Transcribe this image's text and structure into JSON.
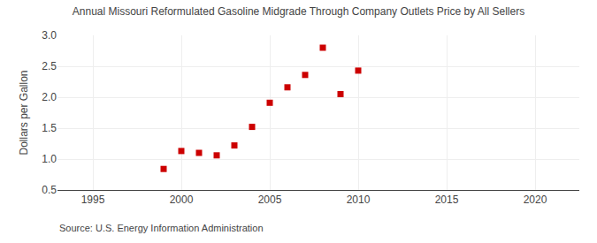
{
  "chart_data": {
    "type": "scatter",
    "title": "Annual Missouri Reformulated Gasoline Midgrade Through Company Outlets Price by All Sellers",
    "ylabel": "Dollars per Gallon",
    "annotations": [
      "Source: U.S. Energy Information Administration"
    ],
    "x": [
      1999,
      2000,
      2001,
      2002,
      2003,
      2004,
      2005,
      2006,
      2007,
      2008,
      2009,
      2010
    ],
    "values": [
      0.84,
      1.13,
      1.1,
      1.06,
      1.22,
      1.52,
      1.91,
      2.16,
      2.36,
      2.8,
      2.05,
      2.43
    ],
    "color": "#cc0000",
    "marker": "square",
    "xlim": [
      1993,
      2022.5
    ],
    "ylim": [
      0.5,
      3.0
    ],
    "xticks": [
      1995,
      2000,
      2005,
      2010,
      2015,
      2020
    ],
    "yticks": [
      0.5,
      {
        "value": 1.0,
        "label": "1.0"
      },
      1.5,
      {
        "value": 2.0,
        "label": "2.0"
      },
      2.5,
      {
        "value": 3.0,
        "label": "3.0"
      }
    ],
    "grid": true
  }
}
